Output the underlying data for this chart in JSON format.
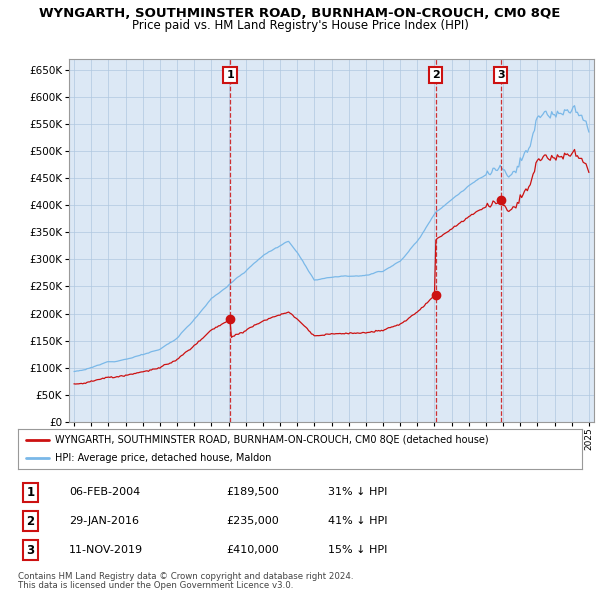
{
  "title": "WYNGARTH, SOUTHMINSTER ROAD, BURNHAM-ON-CROUCH, CM0 8QE",
  "subtitle": "Price paid vs. HM Land Registry's House Price Index (HPI)",
  "legend_line1": "WYNGARTH, SOUTHMINSTER ROAD, BURNHAM-ON-CROUCH, CM0 8QE (detached house)",
  "legend_line2": "HPI: Average price, detached house, Maldon",
  "footer1": "Contains HM Land Registry data © Crown copyright and database right 2024.",
  "footer2": "This data is licensed under the Open Government Licence v3.0.",
  "table": [
    {
      "num": "1",
      "date": "06-FEB-2004",
      "price": "£189,500",
      "hpi": "31% ↓ HPI"
    },
    {
      "num": "2",
      "date": "29-JAN-2016",
      "price": "£235,000",
      "hpi": "41% ↓ HPI"
    },
    {
      "num": "3",
      "date": "11-NOV-2019",
      "price": "£410,000",
      "hpi": "15% ↓ HPI"
    }
  ],
  "sale_dates": [
    2004.09,
    2016.07,
    2019.87
  ],
  "sale_prices": [
    189500,
    235000,
    410000
  ],
  "hpi_color": "#7ab8e8",
  "sale_color": "#cc1111",
  "background_color": "#ffffff",
  "chart_bg_color": "#dce8f5",
  "grid_color": "#b0c8e0",
  "ylim": [
    0,
    670000
  ],
  "xlim_start": 1994.7,
  "xlim_end": 2025.3
}
